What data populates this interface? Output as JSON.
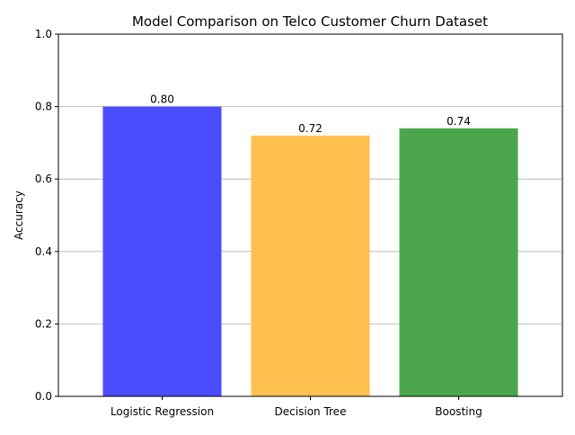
{
  "chart_data": {
    "type": "bar",
    "title": "Model Comparison on Telco Customer Churn Dataset",
    "xlabel": "",
    "ylabel": "Accuracy",
    "categories": [
      "Logistic Regression",
      "Decision Tree",
      "Boosting"
    ],
    "values": [
      0.8,
      0.72,
      0.74
    ],
    "value_labels": [
      "0.80",
      "0.72",
      "0.74"
    ],
    "colors": [
      "#4c4cff",
      "#ffc04f",
      "#4ca64c"
    ],
    "ylim": [
      0,
      1.0
    ],
    "yticks": [
      0.0,
      0.2,
      0.4,
      0.6,
      0.8,
      1.0
    ],
    "ytick_labels": [
      "0.0",
      "0.2",
      "0.4",
      "0.6",
      "0.8",
      "1.0"
    ],
    "grid": "y-axis",
    "legend": "none"
  }
}
